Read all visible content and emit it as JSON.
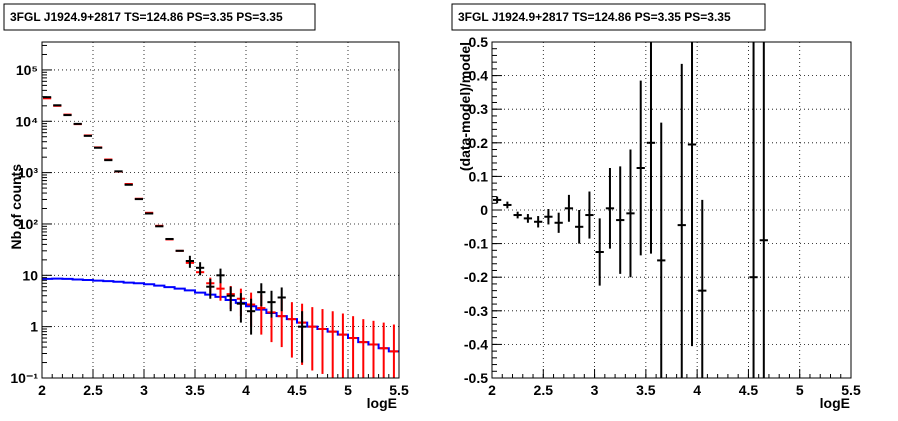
{
  "chart_data": [
    {
      "type": "histogram",
      "title": "3FGL J1924.9+2817 TS=124.86 PS=3.35 PS=3.35",
      "xlabel": "logE",
      "ylabel": "Nb of counts",
      "xlim": [
        2,
        5.5
      ],
      "ylim": [
        0.1,
        350000
      ],
      "yscale": "log",
      "grid": true,
      "x_ticks": [
        "2",
        "2.5",
        "3",
        "3.5",
        "4",
        "4.5",
        "5",
        "5.5"
      ],
      "y_ticks": [
        {
          "value": 0.1,
          "label": "10⁻¹"
        },
        {
          "value": 1,
          "label": "1"
        },
        {
          "value": 10,
          "label": "10"
        },
        {
          "value": 100,
          "label": "10²"
        },
        {
          "value": 1000,
          "label": "10³"
        },
        {
          "value": 10000,
          "label": "10⁴"
        },
        {
          "value": 100000,
          "label": "10⁵"
        }
      ],
      "bin_width": 0.1,
      "series": [
        {
          "color": "#0000ff",
          "style": "step",
          "x": [
            2.0,
            2.1,
            2.2,
            2.3,
            2.4,
            2.5,
            2.6,
            2.7,
            2.8,
            2.9,
            3.0,
            3.1,
            3.2,
            3.3,
            3.4,
            3.5,
            3.6,
            3.7,
            3.8,
            3.9,
            4.0,
            4.1,
            4.2,
            4.3,
            4.4,
            4.5,
            4.6,
            4.7,
            4.8,
            4.9,
            5.0,
            5.1,
            5.2,
            5.3,
            5.4
          ],
          "values": [
            8.5,
            8.6,
            8.5,
            8.3,
            8.1,
            7.9,
            7.7,
            7.5,
            7.2,
            7.0,
            6.7,
            6.3,
            5.9,
            5.5,
            5.1,
            4.6,
            4.2,
            3.8,
            3.3,
            2.9,
            2.5,
            2.15,
            1.85,
            1.6,
            1.4,
            1.2,
            1.0,
            0.9,
            0.8,
            0.7,
            0.6,
            0.5,
            0.45,
            0.38,
            0.33
          ]
        },
        {
          "color": "#ff0000",
          "style": "error_bars",
          "points": [
            {
              "x": 2.05,
              "y": 28000
            },
            {
              "x": 2.15,
              "y": 20000
            },
            {
              "x": 2.25,
              "y": 13500
            },
            {
              "x": 2.35,
              "y": 8800
            },
            {
              "x": 2.45,
              "y": 5300
            },
            {
              "x": 2.55,
              "y": 3100
            },
            {
              "x": 2.65,
              "y": 1800
            },
            {
              "x": 2.75,
              "y": 1050
            },
            {
              "x": 2.85,
              "y": 600
            },
            {
              "x": 2.95,
              "y": 310
            },
            {
              "x": 3.05,
              "y": 165
            },
            {
              "x": 3.15,
              "y": 92
            },
            {
              "x": 3.25,
              "y": 50
            },
            {
              "x": 3.35,
              "y": 30
            },
            {
              "x": 3.45,
              "y": 17.5
            },
            {
              "x": 3.55,
              "y": 11.5
            },
            {
              "x": 3.65,
              "y": 7,
              "lo": 4.5,
              "hi": 9
            },
            {
              "x": 3.75,
              "y": 5.5,
              "lo": 3.2,
              "hi": 7.5
            },
            {
              "x": 3.85,
              "y": 4.3,
              "lo": 2.2,
              "hi": 6.2
            },
            {
              "x": 3.95,
              "y": 3.5,
              "lo": 1.6,
              "hi": 5.5
            },
            {
              "x": 4.05,
              "y": 2.7,
              "lo": 1.0,
              "hi": 4.6
            },
            {
              "x": 4.15,
              "y": 2.3,
              "lo": 0.7,
              "hi": 4.2
            },
            {
              "x": 4.25,
              "y": 1.9,
              "lo": 0.5,
              "hi": 3.8
            },
            {
              "x": 4.35,
              "y": 1.6,
              "lo": 0.4,
              "hi": 3.4
            },
            {
              "x": 4.45,
              "y": 1.4,
              "lo": 0.25,
              "hi": 3.0
            },
            {
              "x": 4.55,
              "y": 1.2,
              "lo": 0.18,
              "hi": 2.8
            },
            {
              "x": 4.65,
              "y": 1.0,
              "lo": 0.14,
              "hi": 2.4
            },
            {
              "x": 4.75,
              "y": 0.9,
              "lo": 0.12,
              "hi": 2.2
            },
            {
              "x": 4.85,
              "y": 0.8,
              "lo": 0.1,
              "hi": 2.0
            },
            {
              "x": 4.95,
              "y": 0.7,
              "lo": 0.1,
              "hi": 1.8
            },
            {
              "x": 5.05,
              "y": 0.6,
              "lo": 0.1,
              "hi": 1.6
            },
            {
              "x": 5.15,
              "y": 0.5,
              "lo": 0.1,
              "hi": 1.4
            },
            {
              "x": 5.25,
              "y": 0.45,
              "lo": 0.1,
              "hi": 1.3
            },
            {
              "x": 5.35,
              "y": 0.38,
              "lo": 0.1,
              "hi": 1.2
            },
            {
              "x": 5.45,
              "y": 0.33,
              "lo": 0.1,
              "hi": 1.1
            }
          ]
        },
        {
          "color": "#000000",
          "style": "error_bars",
          "points": [
            {
              "x": 2.05,
              "y": 29500
            },
            {
              "x": 2.15,
              "y": 20500
            },
            {
              "x": 2.25,
              "y": 13200
            },
            {
              "x": 2.35,
              "y": 8900
            },
            {
              "x": 2.45,
              "y": 5200
            },
            {
              "x": 2.55,
              "y": 3050
            },
            {
              "x": 2.65,
              "y": 1750
            },
            {
              "x": 2.75,
              "y": 1060
            },
            {
              "x": 2.85,
              "y": 580
            },
            {
              "x": 2.95,
              "y": 305
            },
            {
              "x": 3.05,
              "y": 160
            },
            {
              "x": 3.15,
              "y": 90
            },
            {
              "x": 3.25,
              "y": 51
            },
            {
              "x": 3.35,
              "y": 30
            },
            {
              "x": 3.45,
              "y": 19,
              "lo": 14,
              "hi": 24
            },
            {
              "x": 3.55,
              "y": 14,
              "lo": 10,
              "hi": 18
            },
            {
              "x": 3.65,
              "y": 6,
              "lo": 3.5,
              "hi": 8.5
            },
            {
              "x": 3.75,
              "y": 10,
              "lo": 7,
              "hi": 13.5
            },
            {
              "x": 3.85,
              "y": 4,
              "lo": 2,
              "hi": 6
            },
            {
              "x": 3.95,
              "y": 2.8,
              "lo": 1.2,
              "hi": 4.5
            },
            {
              "x": 4.05,
              "y": 2,
              "lo": 0.7,
              "hi": 3.5
            },
            {
              "x": 4.15,
              "y": 4.7,
              "lo": 2.5,
              "hi": 7
            },
            {
              "x": 4.25,
              "y": 3,
              "lo": 1.5,
              "hi": 5
            },
            {
              "x": 4.35,
              "y": 3.7,
              "lo": 2,
              "hi": 5.8
            },
            {
              "x": 4.55,
              "y": 1.0,
              "lo": 0.2,
              "hi": 2
            }
          ]
        }
      ]
    },
    {
      "type": "scatter",
      "title": "3FGL J1924.9+2817 TS=124.86 PS=3.35 PS=3.35",
      "xlabel": "logE",
      "ylabel": "(data-model)/model",
      "xlim": [
        2,
        5.5
      ],
      "ylim": [
        -0.5,
        0.5
      ],
      "grid": true,
      "x_ticks": [
        "2",
        "2.5",
        "3",
        "3.5",
        "4",
        "4.5",
        "5",
        "5.5"
      ],
      "y_ticks": [
        "-0.5",
        "-0.4",
        "-0.3",
        "-0.2",
        "-0.1",
        "0",
        "0.1",
        "0.2",
        "0.3",
        "0.4",
        "0.5"
      ],
      "series": [
        {
          "color": "#000000",
          "style": "error_bars",
          "points": [
            {
              "x": 2.05,
              "y": 0.03,
              "err": 0.01
            },
            {
              "x": 2.15,
              "y": 0.015,
              "err": 0.01
            },
            {
              "x": 2.25,
              "y": -0.015,
              "err": 0.01
            },
            {
              "x": 2.35,
              "y": -0.025,
              "err": 0.013
            },
            {
              "x": 2.45,
              "y": -0.035,
              "err": 0.017
            },
            {
              "x": 2.55,
              "y": -0.02,
              "err": 0.023
            },
            {
              "x": 2.65,
              "y": -0.038,
              "err": 0.03
            },
            {
              "x": 2.75,
              "y": 0.005,
              "err": 0.04
            },
            {
              "x": 2.85,
              "y": -0.05,
              "err": 0.05
            },
            {
              "x": 2.95,
              "y": -0.015,
              "err": 0.07
            },
            {
              "x": 3.05,
              "y": -0.125,
              "err": 0.1
            },
            {
              "x": 3.15,
              "y": 0.005,
              "err": 0.12
            },
            {
              "x": 3.25,
              "y": -0.03,
              "err": 0.16
            },
            {
              "x": 3.35,
              "y": -0.01,
              "err": 0.19
            },
            {
              "x": 3.45,
              "y": 0.125,
              "err": 0.26
            },
            {
              "x": 3.55,
              "y": 0.2,
              "err": 0.33
            },
            {
              "x": 3.65,
              "y": -0.15,
              "err": 0.41
            },
            {
              "x": 3.85,
              "y": -0.045,
              "err": 0.48
            },
            {
              "x": 3.95,
              "y": 0.195,
              "err": 0.6
            },
            {
              "x": 4.05,
              "y": -0.24,
              "err": 0.27
            },
            {
              "x": 4.55,
              "y": -0.2,
              "err": 0.9
            },
            {
              "x": 4.65,
              "y": -0.09,
              "err": 0.9
            }
          ]
        }
      ]
    }
  ]
}
